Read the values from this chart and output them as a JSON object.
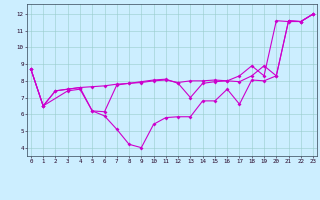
{
  "bg_color": "#cceeff",
  "grid_color": "#99cccc",
  "line_color": "#cc00cc",
  "xlabel_bg": "#555577",
  "xlabel_fg": "#ffffff",
  "xmin": -0.3,
  "xmax": 23.3,
  "ymin": 3.5,
  "ymax": 12.6,
  "yticks": [
    4,
    5,
    6,
    7,
    8,
    9,
    10,
    11,
    12
  ],
  "xticks": [
    0,
    1,
    2,
    3,
    4,
    5,
    6,
    7,
    8,
    9,
    10,
    11,
    12,
    13,
    14,
    15,
    16,
    17,
    18,
    19,
    20,
    21,
    22,
    23
  ],
  "line1_x": [
    0,
    1,
    2,
    3,
    4,
    5,
    6,
    7,
    8,
    9,
    10,
    11,
    12,
    13,
    14,
    15,
    16,
    17,
    18,
    19,
    20,
    21,
    22,
    23
  ],
  "line1_y": [
    8.7,
    6.5,
    7.4,
    7.5,
    7.6,
    7.65,
    7.7,
    7.8,
    7.85,
    7.9,
    8.0,
    8.05,
    7.9,
    8.0,
    8.0,
    8.05,
    8.0,
    8.3,
    8.9,
    8.3,
    11.6,
    11.55,
    11.55,
    12.0
  ],
  "line2_x": [
    0,
    1,
    2,
    3,
    4,
    5,
    6,
    7,
    8,
    9,
    10,
    11,
    12,
    13,
    14,
    15,
    16,
    17,
    18,
    19,
    20,
    21,
    22,
    23
  ],
  "line2_y": [
    8.7,
    6.5,
    7.4,
    7.5,
    7.6,
    6.2,
    6.15,
    7.75,
    7.85,
    7.95,
    8.05,
    8.1,
    7.85,
    7.0,
    7.85,
    7.95,
    8.0,
    7.95,
    8.3,
    8.9,
    8.3,
    11.6,
    11.55,
    12.0
  ],
  "line3_x": [
    0,
    1,
    3,
    4,
    5,
    6,
    7,
    8,
    9,
    10,
    11,
    12,
    13,
    14,
    15,
    16,
    17,
    18,
    19,
    20,
    21,
    22,
    23
  ],
  "line3_y": [
    8.7,
    6.5,
    7.4,
    7.5,
    6.2,
    5.9,
    5.1,
    4.2,
    4.0,
    5.4,
    5.8,
    5.85,
    5.85,
    6.8,
    6.8,
    7.5,
    6.6,
    8.05,
    8.0,
    8.3,
    11.6,
    11.55,
    12.0
  ],
  "tick_fontsize": 4.2,
  "xlabel_fontsize": 5.0,
  "lw": 0.8,
  "ms": 2.0
}
